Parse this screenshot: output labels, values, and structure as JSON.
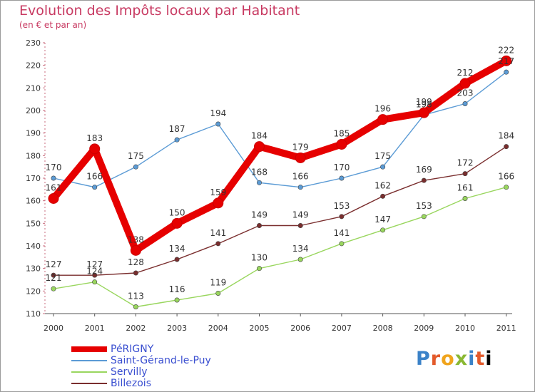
{
  "header": {
    "title": "Evolution des Impôts locaux par Habitant",
    "subtitle": "(en € et par an)"
  },
  "chart_data": {
    "type": "line",
    "title": "Evolution des Impôts locaux par Habitant",
    "subtitle": "(en € et par an)",
    "xlabel": "",
    "ylabel": "",
    "categories": [
      "2000",
      "2001",
      "2002",
      "2003",
      "2004",
      "2005",
      "2006",
      "2007",
      "2008",
      "2009",
      "2010",
      "2011"
    ],
    "ylim": [
      110,
      230
    ],
    "yticks": [
      110,
      120,
      130,
      140,
      150,
      160,
      170,
      180,
      190,
      200,
      210,
      220,
      230
    ],
    "grid": false,
    "legend_position": "bottom-left",
    "series": [
      {
        "name": "PéRIGNY",
        "color": "#e60000",
        "values": [
          161,
          183,
          138,
          150,
          159,
          184,
          179,
          185,
          196,
          199,
          212,
          222
        ]
      },
      {
        "name": "Saint-Gérand-le-Puy",
        "color": "#5b9bd5",
        "values": [
          170,
          166,
          175,
          187,
          194,
          168,
          166,
          170,
          175,
          198,
          203,
          217
        ]
      },
      {
        "name": "Servilly",
        "color": "#99d65e",
        "values": [
          121,
          124,
          113,
          116,
          119,
          130,
          134,
          141,
          147,
          153,
          161,
          166
        ]
      },
      {
        "name": "Billezois",
        "color": "#7a2e2e",
        "values": [
          127,
          127,
          128,
          134,
          141,
          149,
          149,
          153,
          162,
          169,
          172,
          184
        ]
      }
    ]
  },
  "logo": {
    "letters": [
      "P",
      "r",
      "o",
      "x",
      "i",
      "t",
      "i"
    ]
  }
}
